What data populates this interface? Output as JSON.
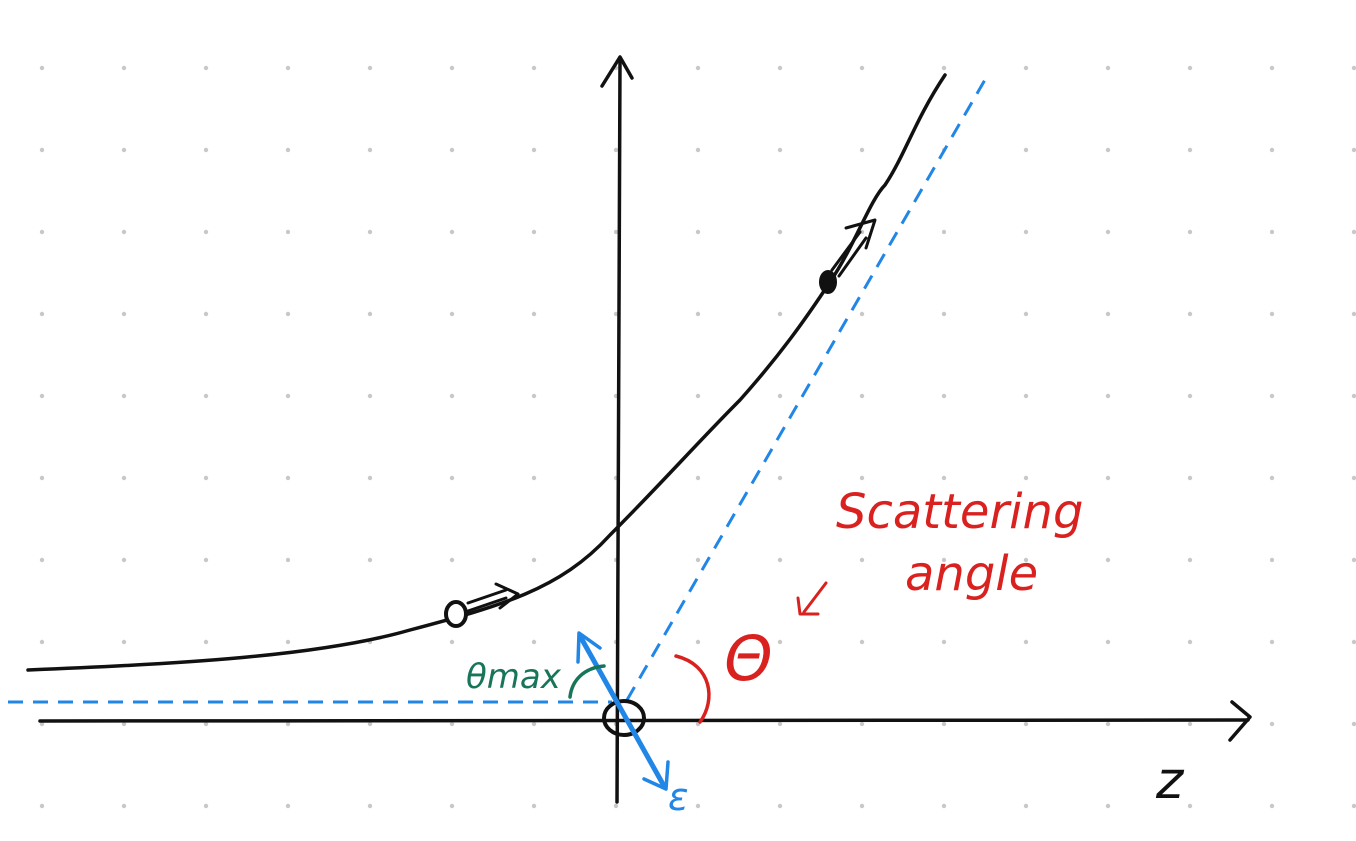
{
  "labels": {
    "scattering_line1": "Scattering",
    "scattering_line2": "angle",
    "theta": "Θ",
    "theta_max": "θmax",
    "z_axis": "z",
    "epsilon": "ε"
  },
  "colors": {
    "background": "#ffffff",
    "grid_dot": "#c8c8c8",
    "ink": "#111111",
    "blue": "#2186e6",
    "red": "#d9221f",
    "green": "#17755a"
  },
  "icons": {
    "axis_arrowheads": "chevron-arrowheads",
    "velocity_arrows": "double-line-arrows"
  }
}
